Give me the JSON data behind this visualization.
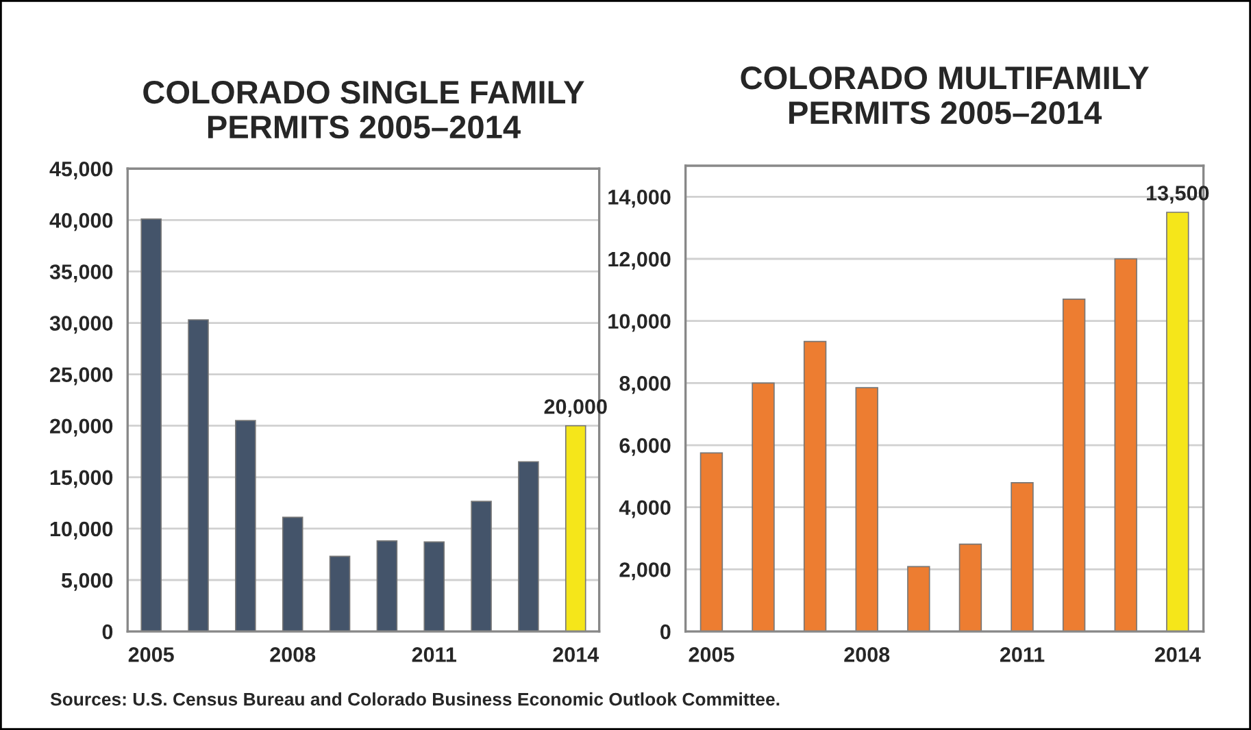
{
  "chart_data": [
    {
      "type": "bar",
      "title": "COLORADO SINGLE FAMILY\nPERMITS 2005–2014",
      "categories": [
        "2005",
        null,
        null,
        "2008",
        null,
        null,
        "2011",
        null,
        null,
        "2014"
      ],
      "values": [
        40100,
        30300,
        20500,
        11100,
        7300,
        8800,
        8700,
        12650,
        16500,
        20000
      ],
      "colors": [
        "#44546a",
        "#44546a",
        "#44546a",
        "#44546a",
        "#44546a",
        "#44546a",
        "#44546a",
        "#44546a",
        "#44546a",
        "#f5e61a"
      ],
      "value_labels": [
        null,
        null,
        null,
        null,
        null,
        null,
        null,
        null,
        null,
        "20,000"
      ],
      "ylim": [
        0,
        45000
      ],
      "yticks": [
        {
          "value": 0,
          "label": "0"
        },
        {
          "value": 5000,
          "label": "5,000"
        },
        {
          "value": 10000,
          "label": "10,000"
        },
        {
          "value": 15000,
          "label": "15,000"
        },
        {
          "value": 20000,
          "label": "20,000"
        },
        {
          "value": 25000,
          "label": "25,000"
        },
        {
          "value": 30000,
          "label": "30,000"
        },
        {
          "value": 35000,
          "label": "35,000"
        },
        {
          "value": 40000,
          "label": "40,000"
        },
        {
          "value": 45000,
          "label": "45,000"
        }
      ],
      "grid": "y",
      "legend": false,
      "annotations": [
        "Sources: U.S. Census Bureau and Colorado Business Economic Outlook Committee."
      ]
    },
    {
      "type": "bar",
      "title": "COLORADO MULTIFAMILY\nPERMITS 2005–2014",
      "categories": [
        "2005",
        null,
        null,
        "2008",
        null,
        null,
        "2011",
        null,
        null,
        "2014"
      ],
      "values": [
        5750,
        8000,
        9340,
        7850,
        2090,
        2810,
        4790,
        10700,
        12000,
        13500
      ],
      "colors": [
        "#ed7d31",
        "#ed7d31",
        "#ed7d31",
        "#ed7d31",
        "#ed7d31",
        "#ed7d31",
        "#ed7d31",
        "#ed7d31",
        "#ed7d31",
        "#f5e61a"
      ],
      "value_labels": [
        null,
        null,
        null,
        null,
        null,
        null,
        null,
        null,
        null,
        "13,500"
      ],
      "ylim": [
        0,
        15000
      ],
      "yticks": [
        {
          "value": 0,
          "label": "0"
        },
        {
          "value": 2000,
          "label": "2,000"
        },
        {
          "value": 4000,
          "label": "4,000"
        },
        {
          "value": 6000,
          "label": "6,000"
        },
        {
          "value": 8000,
          "label": "8,000"
        },
        {
          "value": 10000,
          "label": "10,000"
        },
        {
          "value": 12000,
          "label": "12,000"
        },
        {
          "value": 14000,
          "label": "14,000"
        }
      ],
      "grid": "y",
      "legend": false
    }
  ]
}
